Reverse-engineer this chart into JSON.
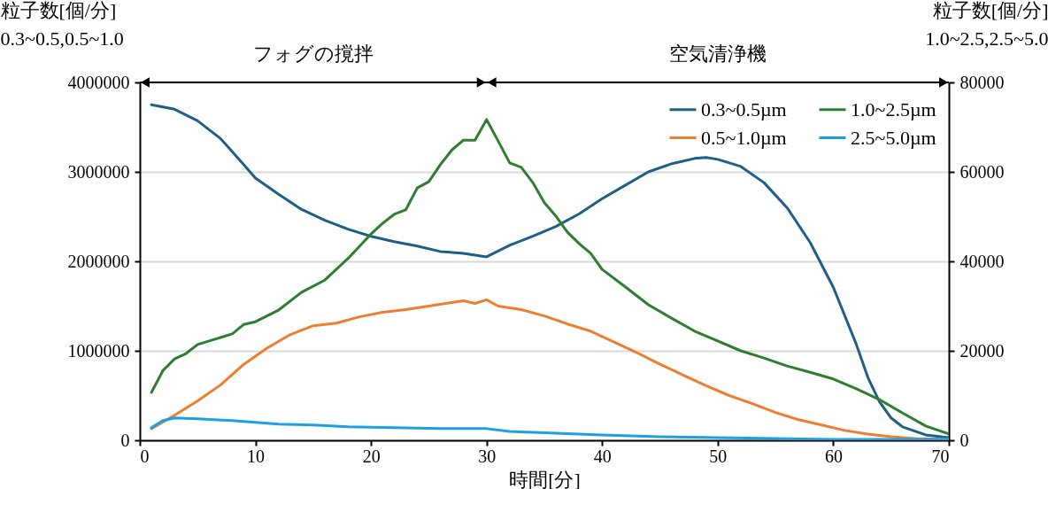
{
  "chart_data": {
    "type": "line",
    "xlabel": "時間[分]",
    "ylabel": "粒子数[個/分]\n0.3~0.5,0.5~1.0",
    "y2label": "粒子数[個/分]\n1.0~2.5,2.5~5.0",
    "xlim": [
      0,
      70
    ],
    "xticks": [
      0,
      10,
      20,
      30,
      40,
      50,
      60,
      70
    ],
    "ylim": [
      0,
      4000000
    ],
    "yticks": [
      0,
      1000000,
      2000000,
      3000000,
      4000000
    ],
    "y2lim": [
      0,
      80000
    ],
    "y2ticks": [
      0,
      20000,
      40000,
      60000,
      80000
    ],
    "grid": "y",
    "legend": "top right",
    "marker": "none",
    "line_style": "solid",
    "annotations": [
      "フォグの撹拌",
      "空気清浄機"
    ],
    "series": [
      {
        "name": "0.3~0.5µm",
        "color": "#1f5f87",
        "x": [
          1,
          3,
          5,
          7,
          9,
          10,
          12,
          14,
          16,
          18,
          20,
          22,
          24,
          26,
          28,
          30,
          32,
          34,
          36,
          38,
          40,
          42,
          44,
          46,
          48,
          49,
          50,
          52,
          54,
          56,
          58,
          60,
          62,
          63,
          64,
          65,
          66,
          68,
          70
        ],
        "values": [
          3750000,
          3700000,
          3570000,
          3370000,
          3080000,
          2930000,
          2750000,
          2580000,
          2460000,
          2360000,
          2280000,
          2220000,
          2170000,
          2110000,
          2090000,
          2050000,
          2180000,
          2280000,
          2390000,
          2530000,
          2700000,
          2850000,
          3000000,
          3090000,
          3150000,
          3160000,
          3140000,
          3060000,
          2880000,
          2600000,
          2210000,
          1710000,
          1070000,
          700000,
          430000,
          250000,
          150000,
          60000,
          30000
        ]
      },
      {
        "name": "0.5~1.0µm",
        "color": "#ed7d31",
        "x": [
          1,
          3,
          5,
          7,
          9,
          11,
          13,
          15,
          17,
          19,
          21,
          23,
          25,
          27,
          28,
          29,
          30,
          31,
          33,
          35,
          37,
          39,
          41,
          43,
          45,
          47,
          49,
          51,
          53,
          55,
          57,
          59,
          61,
          63,
          65,
          67,
          70
        ],
        "values": [
          130000,
          280000,
          440000,
          620000,
          850000,
          1030000,
          1180000,
          1280000,
          1310000,
          1380000,
          1430000,
          1460000,
          1500000,
          1540000,
          1560000,
          1530000,
          1570000,
          1500000,
          1460000,
          1390000,
          1300000,
          1220000,
          1100000,
          980000,
          850000,
          730000,
          610000,
          500000,
          410000,
          310000,
          230000,
          170000,
          110000,
          70000,
          40000,
          20000,
          10000
        ]
      },
      {
        "name": "1.0~2.5µm",
        "color": "#2e7d32",
        "axis": "y2",
        "x": [
          1,
          2,
          3,
          4,
          5,
          6,
          8,
          9,
          10,
          12,
          14,
          16,
          18,
          20,
          21,
          22,
          23,
          24,
          25,
          26,
          27,
          28,
          29,
          30,
          31,
          32,
          33,
          34,
          35,
          36,
          37,
          38,
          39,
          40,
          42,
          44,
          46,
          48,
          50,
          52,
          54,
          56,
          58,
          60,
          62,
          64,
          66,
          68,
          70
        ],
        "values": [
          10700,
          15600,
          18200,
          19400,
          21400,
          22200,
          23800,
          25900,
          26500,
          29100,
          33100,
          35800,
          40600,
          46100,
          48500,
          50500,
          51500,
          56400,
          57800,
          61600,
          64900,
          67100,
          67100,
          71700,
          66900,
          62000,
          61000,
          57600,
          53100,
          50100,
          46500,
          44000,
          41800,
          38200,
          34300,
          30300,
          27300,
          24400,
          22200,
          20000,
          18400,
          16600,
          15200,
          13700,
          11500,
          9100,
          6100,
          3200,
          1400
        ]
      },
      {
        "name": "2.5~5.0µm",
        "color": "#1ba1e2",
        "axis": "y2",
        "x": [
          1,
          2,
          3,
          5,
          8,
          10,
          12,
          15,
          18,
          22,
          26,
          30,
          32,
          36,
          40,
          45,
          50,
          55,
          60,
          70
        ],
        "values": [
          2800,
          4400,
          5000,
          4800,
          4400,
          4000,
          3600,
          3400,
          3000,
          2800,
          2600,
          2600,
          2000,
          1600,
          1200,
          800,
          600,
          400,
          200,
          200
        ]
      }
    ]
  }
}
